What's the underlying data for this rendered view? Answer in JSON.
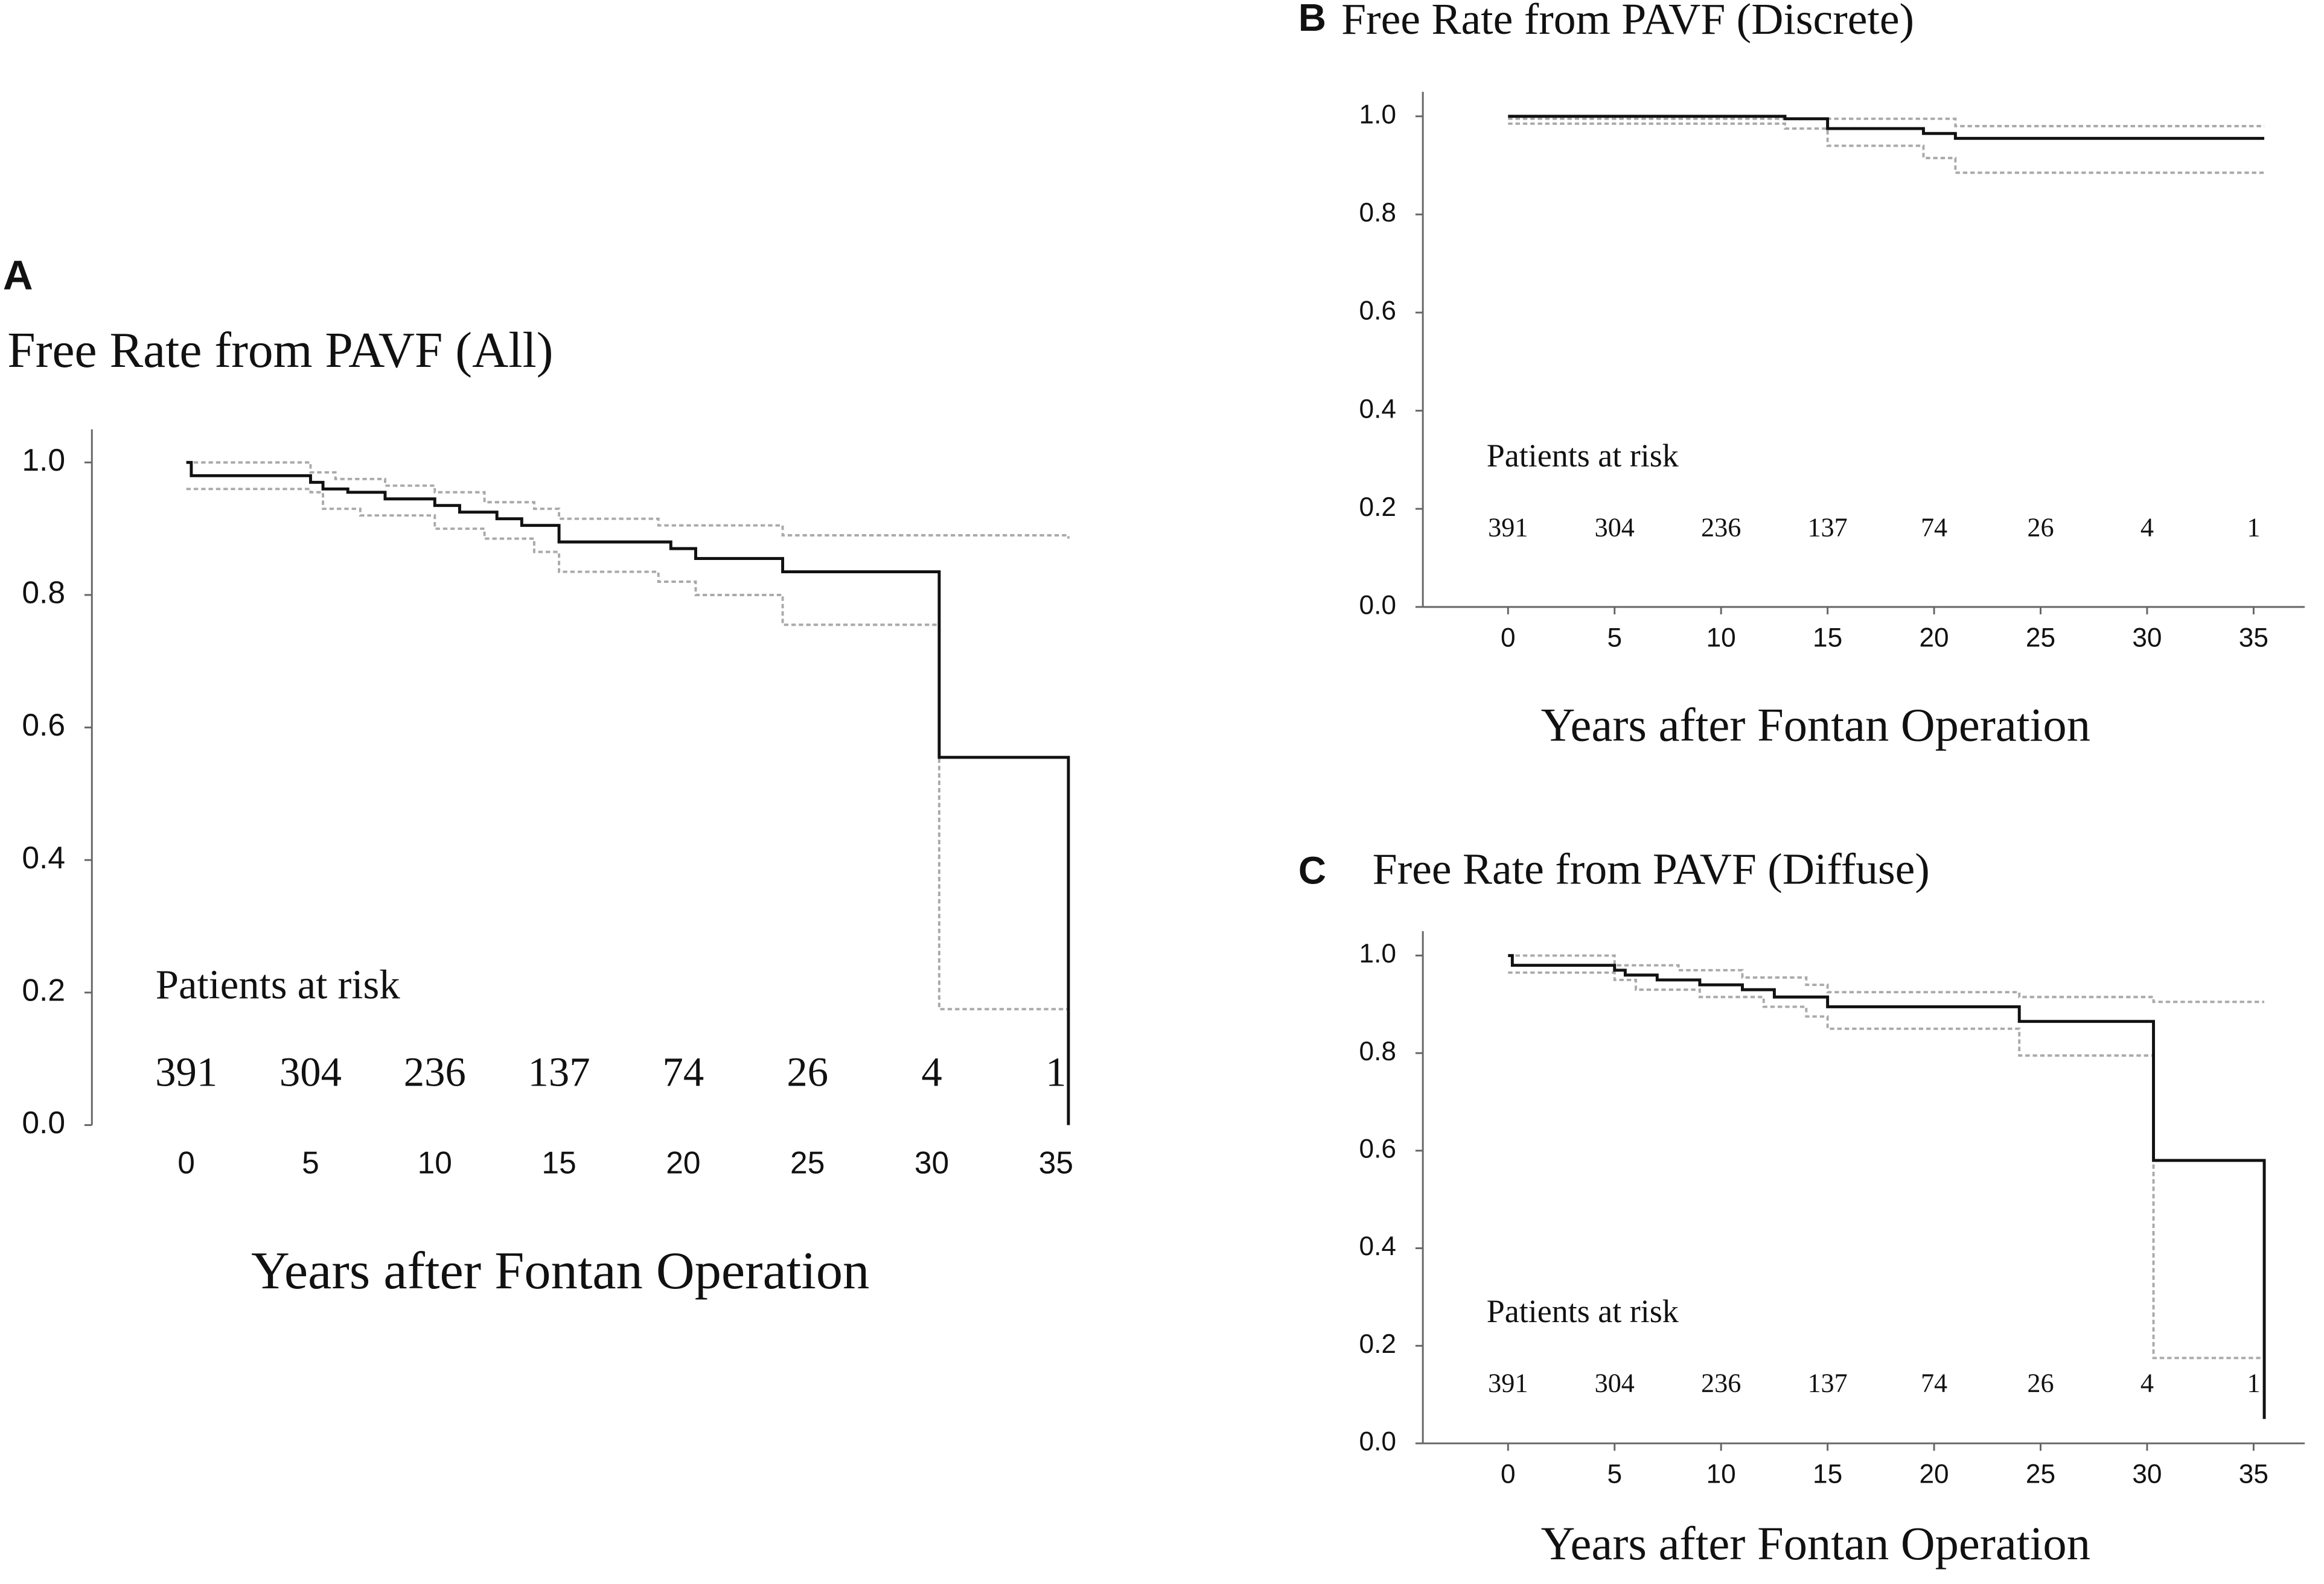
{
  "chart_data": [
    {
      "type": "line",
      "panel": "A",
      "title": "Free Rate from PAVF (All)",
      "x_label": "Years after Fontan Operation",
      "annotation": "Patients at risk",
      "at_risk": [
        391,
        304,
        236,
        137,
        74,
        26,
        4,
        1
      ],
      "step": "post",
      "x_axis_line": false,
      "xlim": [
        -3.8,
        37
      ],
      "xticks": [
        0,
        5,
        10,
        15,
        20,
        25,
        30,
        35
      ],
      "ylim": [
        0,
        1.05
      ],
      "yticks": [
        {
          "value": 0,
          "label": "0.0"
        },
        {
          "value": 0.2,
          "label": "0.2"
        },
        {
          "value": 0.4,
          "label": "0.4"
        },
        {
          "value": 0.6,
          "label": "0.6"
        },
        {
          "value": 0.8,
          "label": "0.8"
        },
        {
          "value": 1,
          "label": "1.0"
        }
      ],
      "series": [
        {
          "color": "#aaaaaa",
          "dashed": true,
          "x": [
            0,
            5,
            6,
            8,
            10,
            12,
            14,
            15,
            19,
            24,
            30.3,
            35.5
          ],
          "values": [
            1.0,
            0.985,
            0.975,
            0.965,
            0.955,
            0.94,
            0.93,
            0.915,
            0.905,
            0.89,
            0.89,
            0.885
          ]
        },
        {
          "color": "#aaaaaa",
          "dashed": true,
          "x": [
            0,
            5,
            5.5,
            7,
            10,
            12,
            14,
            15,
            19,
            20.5,
            24,
            30.3,
            35.5
          ],
          "values": [
            0.96,
            0.955,
            0.93,
            0.92,
            0.9,
            0.885,
            0.865,
            0.835,
            0.82,
            0.8,
            0.755,
            0.175,
            0.175
          ]
        },
        {
          "color": "#111111",
          "dashed": false,
          "x": [
            0,
            0.2,
            5,
            5.5,
            6.5,
            8,
            10,
            11,
            12.5,
            13.5,
            15,
            19.5,
            20.5,
            24,
            30.3,
            35.5
          ],
          "values": [
            1.0,
            0.98,
            0.97,
            0.96,
            0.955,
            0.945,
            0.935,
            0.925,
            0.915,
            0.905,
            0.88,
            0.87,
            0.855,
            0.835,
            0.555,
            0.0
          ]
        }
      ]
    },
    {
      "type": "line",
      "panel": "B",
      "title": "Free Rate from PAVF (Discrete)",
      "x_label": "Years after Fontan Operation",
      "annotation": "Patients at risk",
      "at_risk": [
        391,
        304,
        236,
        137,
        74,
        26,
        4,
        1
      ],
      "step": "post",
      "x_axis_line": true,
      "xlim": [
        -4,
        37.4
      ],
      "xticks": [
        0,
        5,
        10,
        15,
        20,
        25,
        30,
        35
      ],
      "ylim": [
        0,
        1.05
      ],
      "yticks": [
        {
          "value": 0,
          "label": "0.0"
        },
        {
          "value": 0.2,
          "label": "0.2"
        },
        {
          "value": 0.4,
          "label": "0.4"
        },
        {
          "value": 0.6,
          "label": "0.6"
        },
        {
          "value": 0.8,
          "label": "0.8"
        },
        {
          "value": 1,
          "label": "1.0"
        }
      ],
      "series": [
        {
          "color": "#aaaaaa",
          "dashed": true,
          "x": [
            0,
            13,
            21,
            35.5
          ],
          "values": [
            0.995,
            0.995,
            0.98,
            0.98
          ]
        },
        {
          "color": "#aaaaaa",
          "dashed": true,
          "x": [
            0,
            13,
            15,
            19.5,
            21,
            35.5
          ],
          "values": [
            0.985,
            0.975,
            0.94,
            0.915,
            0.885,
            0.885
          ]
        },
        {
          "color": "#111111",
          "dashed": false,
          "x": [
            0,
            13,
            15,
            19.5,
            21,
            35.5
          ],
          "values": [
            1.0,
            0.995,
            0.975,
            0.965,
            0.955,
            0.955
          ]
        }
      ]
    },
    {
      "type": "line",
      "panel": "C",
      "title": "Free Rate from PAVF (Diffuse)",
      "x_label": "Years after Fontan Operation",
      "annotation": "Patients at risk",
      "at_risk": [
        391,
        304,
        236,
        137,
        74,
        26,
        4,
        1
      ],
      "step": "post",
      "x_axis_line": true,
      "xlim": [
        -4,
        37.4
      ],
      "xticks": [
        0,
        5,
        10,
        15,
        20,
        25,
        30,
        35
      ],
      "ylim": [
        0,
        1.05
      ],
      "yticks": [
        {
          "value": 0,
          "label": "0.0"
        },
        {
          "value": 0.2,
          "label": "0.2"
        },
        {
          "value": 0.4,
          "label": "0.4"
        },
        {
          "value": 0.6,
          "label": "0.6"
        },
        {
          "value": 0.8,
          "label": "0.8"
        },
        {
          "value": 1,
          "label": "1.0"
        }
      ],
      "series": [
        {
          "color": "#aaaaaa",
          "dashed": true,
          "x": [
            0,
            5,
            8,
            11,
            14,
            15,
            24,
            30.3,
            35.5
          ],
          "values": [
            1.0,
            0.98,
            0.97,
            0.955,
            0.94,
            0.925,
            0.915,
            0.905,
            0.905
          ]
        },
        {
          "color": "#aaaaaa",
          "dashed": true,
          "x": [
            0,
            5,
            6,
            9,
            12,
            14,
            15,
            24,
            30.3,
            35.5
          ],
          "values": [
            0.965,
            0.95,
            0.93,
            0.915,
            0.895,
            0.875,
            0.85,
            0.795,
            0.175,
            0.175
          ]
        },
        {
          "color": "#111111",
          "dashed": false,
          "x": [
            0,
            0.2,
            5,
            5.5,
            7,
            9,
            11,
            12.5,
            15,
            24,
            30.3,
            35.5
          ],
          "values": [
            1.0,
            0.98,
            0.97,
            0.96,
            0.95,
            0.94,
            0.93,
            0.915,
            0.895,
            0.865,
            0.58,
            0.05
          ]
        }
      ]
    }
  ]
}
